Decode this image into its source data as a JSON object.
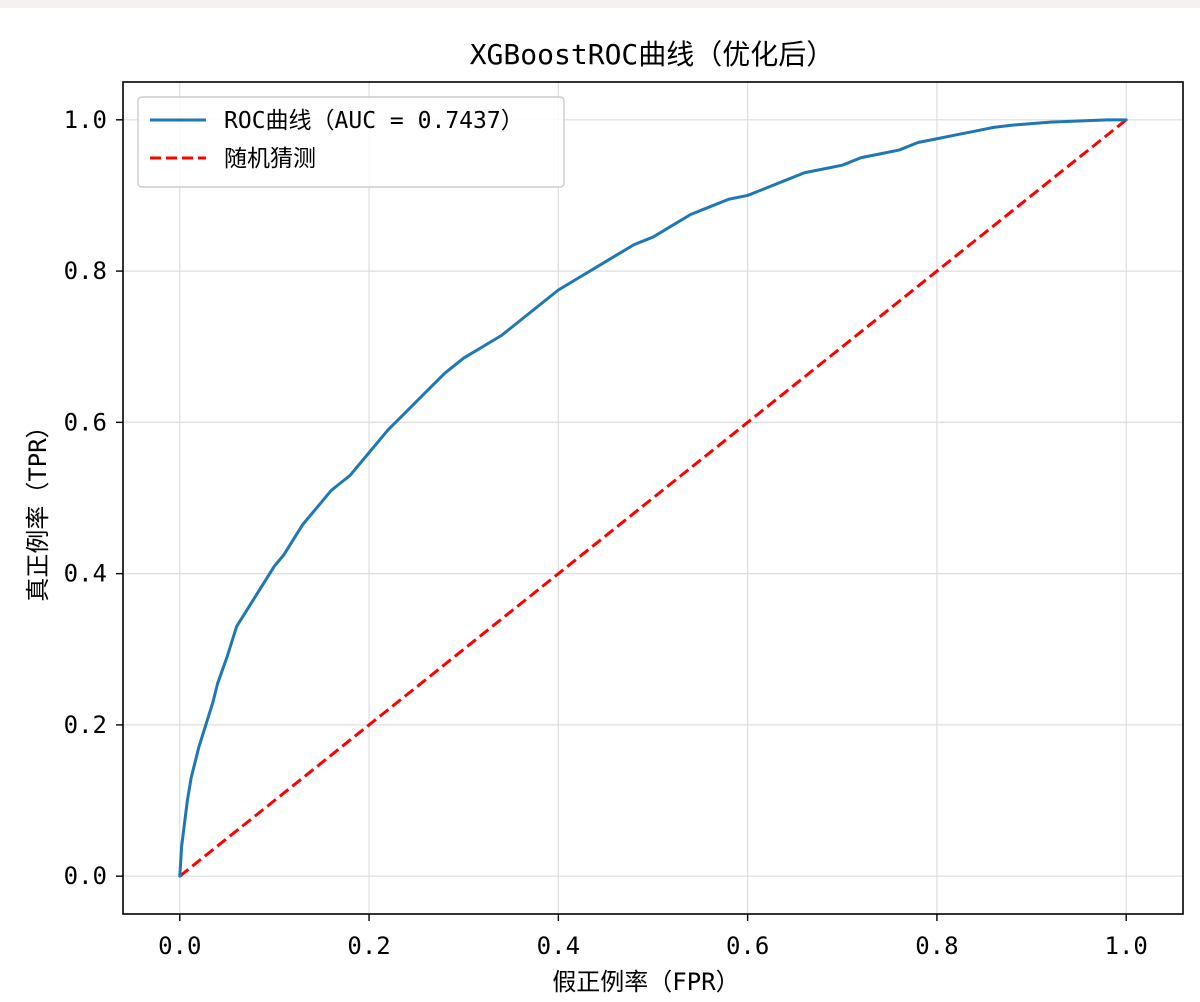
{
  "chart_data": {
    "type": "line",
    "title": "XGBoostROC曲线（优化后）",
    "xlabel": "假正例率（FPR）",
    "ylabel": "真正例率（TPR）",
    "xlim": [
      -0.06,
      1.06
    ],
    "ylim": [
      -0.05,
      1.05
    ],
    "xticks": [
      0.0,
      0.2,
      0.4,
      0.6,
      0.8,
      1.0
    ],
    "yticks": [
      0.0,
      0.2,
      0.4,
      0.6,
      0.8,
      1.0
    ],
    "xtick_labels": [
      "0.0",
      "0.2",
      "0.4",
      "0.6",
      "0.8",
      "1.0"
    ],
    "ytick_labels": [
      "0.0",
      "0.2",
      "0.4",
      "0.6",
      "0.8",
      "1.0"
    ],
    "grid": true,
    "legend_position": "top-left",
    "series": [
      {
        "name": "ROC曲线（AUC = 0.7437）",
        "style": "solid",
        "color": "#1f77b4",
        "x": [
          0.0,
          0.002,
          0.005,
          0.008,
          0.012,
          0.016,
          0.02,
          0.025,
          0.03,
          0.035,
          0.04,
          0.05,
          0.06,
          0.07,
          0.08,
          0.09,
          0.1,
          0.11,
          0.12,
          0.13,
          0.14,
          0.15,
          0.16,
          0.17,
          0.18,
          0.2,
          0.22,
          0.24,
          0.26,
          0.28,
          0.3,
          0.32,
          0.34,
          0.36,
          0.38,
          0.4,
          0.42,
          0.44,
          0.46,
          0.48,
          0.5,
          0.52,
          0.54,
          0.56,
          0.58,
          0.6,
          0.62,
          0.64,
          0.66,
          0.68,
          0.7,
          0.72,
          0.74,
          0.76,
          0.78,
          0.8,
          0.82,
          0.84,
          0.86,
          0.88,
          0.9,
          0.92,
          0.94,
          0.96,
          0.98,
          1.0
        ],
        "y": [
          0.0,
          0.04,
          0.07,
          0.1,
          0.13,
          0.15,
          0.17,
          0.19,
          0.21,
          0.23,
          0.255,
          0.29,
          0.33,
          0.35,
          0.37,
          0.39,
          0.41,
          0.425,
          0.445,
          0.465,
          0.48,
          0.495,
          0.51,
          0.52,
          0.53,
          0.56,
          0.59,
          0.615,
          0.64,
          0.665,
          0.685,
          0.7,
          0.715,
          0.735,
          0.755,
          0.775,
          0.79,
          0.805,
          0.82,
          0.835,
          0.845,
          0.86,
          0.875,
          0.885,
          0.895,
          0.9,
          0.91,
          0.92,
          0.93,
          0.935,
          0.94,
          0.95,
          0.955,
          0.96,
          0.97,
          0.975,
          0.98,
          0.985,
          0.99,
          0.993,
          0.995,
          0.997,
          0.998,
          0.999,
          1.0,
          1.0
        ]
      },
      {
        "name": "随机猜测",
        "style": "dashed",
        "color": "#ff0000",
        "x": [
          0.0,
          1.0
        ],
        "y": [
          0.0,
          1.0
        ]
      }
    ]
  }
}
